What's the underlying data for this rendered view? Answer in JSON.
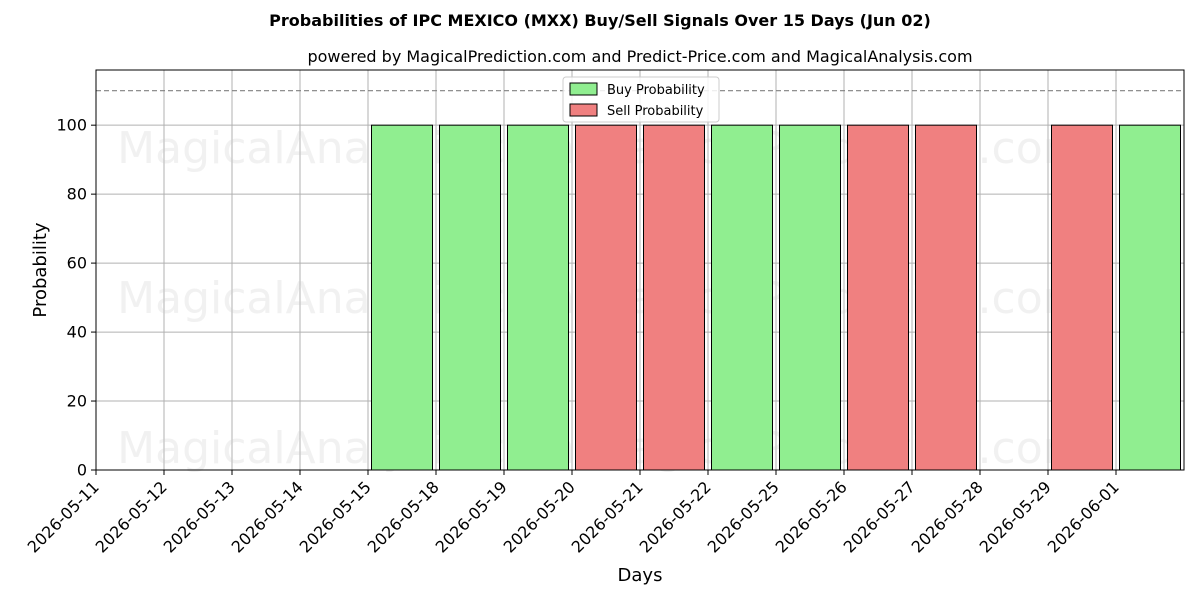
{
  "chart_data": {
    "type": "bar",
    "title": "Probabilities of IPC MEXICO (MXX) Buy/Sell Signals Over 15 Days (Jun 02)",
    "subtitle": "powered by MagicalPrediction.com and Predict-Price.com and MagicalAnalysis.com",
    "xlabel": "Days",
    "ylabel": "Probability",
    "ylim": [
      0,
      116
    ],
    "yticks": [
      0,
      20,
      40,
      60,
      80,
      100
    ],
    "threshold": 110,
    "grid": true,
    "legend_position": "top-center",
    "categories": [
      "2026-05-11",
      "2026-05-12",
      "2026-05-13",
      "2026-05-14",
      "2026-05-15",
      "2026-05-18",
      "2026-05-19",
      "2026-05-20",
      "2026-05-21",
      "2026-05-22",
      "2026-05-25",
      "2026-05-26",
      "2026-05-27",
      "2026-05-28",
      "2026-05-29",
      "2026-06-01"
    ],
    "bars": [
      {
        "day": "2026-05-15",
        "signal": "buy",
        "value": 100
      },
      {
        "day": "2026-05-18",
        "signal": "buy",
        "value": 100
      },
      {
        "day": "2026-05-19",
        "signal": "buy",
        "value": 100
      },
      {
        "day": "2026-05-20",
        "signal": "sell",
        "value": 100
      },
      {
        "day": "2026-05-21",
        "signal": "sell",
        "value": 100
      },
      {
        "day": "2026-05-22",
        "signal": "buy",
        "value": 100
      },
      {
        "day": "2026-05-25",
        "signal": "buy",
        "value": 100
      },
      {
        "day": "2026-05-26",
        "signal": "sell",
        "value": 100
      },
      {
        "day": "2026-05-27",
        "signal": "sell",
        "value": 100
      },
      {
        "day": "2026-05-29",
        "signal": "sell",
        "value": 100
      },
      {
        "day": "2026-06-01",
        "signal": "buy",
        "value": 100
      }
    ],
    "series": [
      {
        "key": "buy",
        "name": "Buy Probability",
        "color": "#90ee90"
      },
      {
        "key": "sell",
        "name": "Sell Probability",
        "color": "#f08080"
      }
    ],
    "watermarks": [
      "MagicalAnalysis.com",
      "MagicalPrediction.com"
    ]
  }
}
